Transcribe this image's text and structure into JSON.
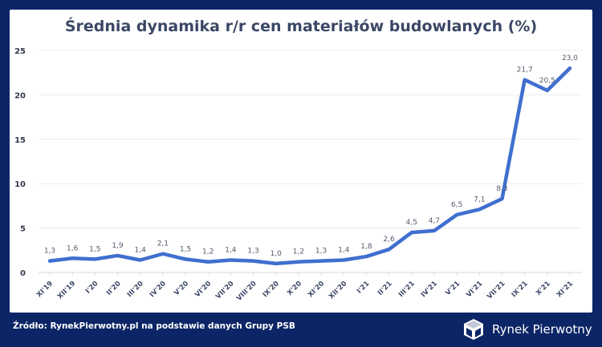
{
  "chart_data": {
    "type": "line",
    "title": "Średnia dynamika r/r cen materiałów budowlanych (%)",
    "categories": [
      "XI'19",
      "XII'19",
      "I'20",
      "II'20",
      "III'20",
      "IV'20",
      "V'20",
      "VI'20",
      "VII'20",
      "VIII'20",
      "IX'20",
      "X'20",
      "XI'20",
      "XII'20",
      "I'21",
      "II'21",
      "III'21",
      "IV'21",
      "V'21",
      "VI'21",
      "VII'21",
      "IX'21",
      "X'21",
      "XI'21"
    ],
    "values": [
      1.3,
      1.6,
      1.5,
      1.9,
      1.4,
      2.1,
      1.5,
      1.2,
      1.4,
      1.3,
      1.0,
      1.2,
      1.3,
      1.4,
      1.8,
      2.6,
      4.5,
      4.7,
      6.5,
      7.1,
      8.3,
      21.7,
      20.5,
      23.0
    ],
    "data_labels": [
      "1,3",
      "1,6",
      "1,5",
      "1,9",
      "1,4",
      "2,1",
      "1,5",
      "1,2",
      "1,4",
      "1,3",
      "1,0",
      "1,2",
      "1,3",
      "1,4",
      "1,8",
      "2,6",
      "4,5",
      "4,7",
      "6,5",
      "7,1",
      "8,3",
      "21,7",
      "20,5",
      "23,0"
    ],
    "ylim": [
      0,
      25
    ],
    "yticks": [
      0,
      5,
      10,
      15,
      20,
      25
    ],
    "grid": true,
    "line_color": "#3f6fcf"
  },
  "footer": {
    "source": "Źródło: RynekPierwotny.pl na podstawie danych Grupy PSB",
    "logo_text": "Rynek Pierwotny"
  }
}
